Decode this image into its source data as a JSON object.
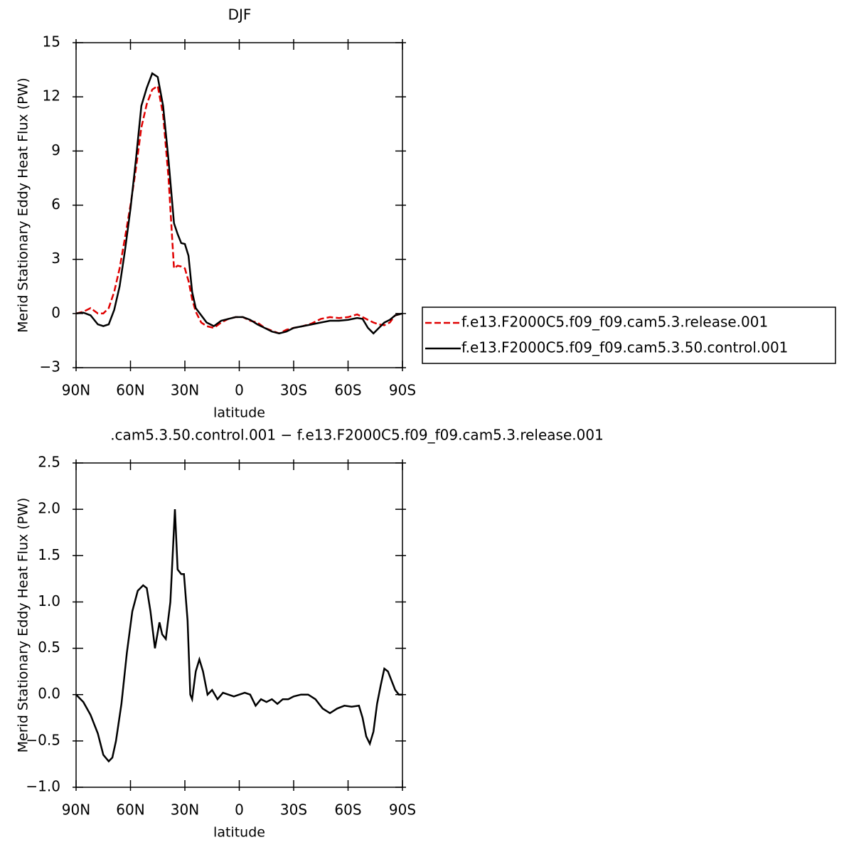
{
  "chart_data": [
    {
      "type": "line",
      "title": "DJF",
      "xlabel": "latitude",
      "ylabel": "Merid Stationary Eddy Heat Flux (PW)",
      "legend": "right",
      "x": [
        90,
        86,
        82,
        78,
        75,
        72,
        69,
        66,
        63,
        60,
        57,
        54,
        51,
        48,
        45,
        42,
        39,
        36,
        34,
        32,
        30,
        28,
        26,
        24,
        21,
        18,
        14,
        10,
        6,
        2,
        -2,
        -6,
        -10,
        -14,
        -18,
        -22,
        -26,
        -30,
        -35,
        -40,
        -45,
        -50,
        -55,
        -60,
        -65,
        -68,
        -71,
        -74,
        -77,
        -80,
        -83,
        -86,
        -90
      ],
      "series": [
        {
          "name": "f.e13.F2000C5.f09_f09.cam5.3.release.001",
          "color": "#e00000",
          "dash": true,
          "values": [
            0,
            0.1,
            0.3,
            0.0,
            0.0,
            0.3,
            1.2,
            2.5,
            4.2,
            6.0,
            8.0,
            10.3,
            11.6,
            12.4,
            12.6,
            11.0,
            7.5,
            2.5,
            2.65,
            2.6,
            2.5,
            1.8,
            0.8,
            0.1,
            -0.5,
            -0.7,
            -0.8,
            -0.5,
            -0.3,
            -0.2,
            -0.2,
            -0.4,
            -0.5,
            -0.8,
            -0.95,
            -1.1,
            -0.9,
            -0.8,
            -0.7,
            -0.55,
            -0.3,
            -0.2,
            -0.25,
            -0.2,
            -0.05,
            -0.2,
            -0.35,
            -0.5,
            -0.6,
            -0.65,
            -0.5,
            -0.1,
            0
          ]
        },
        {
          "name": "f.e13.F2000C5.f09_f09.cam5.3.50.control.001",
          "color": "#000000",
          "dash": false,
          "values": [
            0,
            0.05,
            -0.1,
            -0.6,
            -0.7,
            -0.6,
            0.2,
            1.5,
            3.5,
            5.8,
            8.5,
            11.5,
            12.5,
            13.3,
            13.1,
            11.5,
            8.5,
            5,
            4.4,
            3.9,
            3.85,
            3.2,
            1.2,
            0.3,
            -0.1,
            -0.5,
            -0.7,
            -0.4,
            -0.3,
            -0.2,
            -0.2,
            -0.35,
            -0.6,
            -0.8,
            -1.0,
            -1.1,
            -1.0,
            -0.8,
            -0.7,
            -0.6,
            -0.5,
            -0.4,
            -0.4,
            -0.35,
            -0.25,
            -0.3,
            -0.8,
            -1.1,
            -0.8,
            -0.5,
            -0.35,
            -0.1,
            0
          ]
        }
      ],
      "xlim": [
        90,
        -90
      ],
      "xticks": [
        {
          "value": 90,
          "label": "90N"
        },
        {
          "value": 60,
          "label": "60N"
        },
        {
          "value": 30,
          "label": "30N"
        },
        0,
        {
          "value": -30,
          "label": "30S"
        },
        {
          "value": -60,
          "label": "60S"
        },
        {
          "value": -90,
          "label": "90S"
        }
      ],
      "ylim": [
        -3,
        15
      ],
      "yticks": [
        {
          "value": -3,
          "label": "−3"
        },
        0,
        3,
        6,
        9,
        12,
        15
      ]
    },
    {
      "type": "line",
      "title": ".cam5.3.50.control.001 − f.e13.F2000C5.f09_f09.cam5.3.release.001",
      "xlabel": "latitude",
      "ylabel": "Merid Stationary Eddy Heat Flux (PW)",
      "x": [
        90,
        86,
        82,
        78,
        75,
        72,
        70,
        68,
        65,
        62,
        59,
        56,
        53,
        51,
        49,
        46.5,
        44,
        42.5,
        40.5,
        38,
        35.5,
        34,
        32,
        30.5,
        28.5,
        27,
        26,
        24,
        22,
        20,
        17.5,
        15,
        12,
        9,
        6,
        3,
        0,
        -3,
        -6,
        -9,
        -12,
        -15,
        -18,
        -21,
        -24,
        -27,
        -30,
        -34,
        -38,
        -42,
        -46,
        -50,
        -54,
        -58,
        -62,
        -66,
        -68,
        -70,
        -72,
        -74,
        -76,
        -78,
        -80,
        -82,
        -84,
        -86,
        -88,
        -90
      ],
      "series": [
        {
          "color": "#000000",
          "dash": false,
          "values": [
            0,
            -0.08,
            -0.22,
            -0.42,
            -0.65,
            -0.72,
            -0.68,
            -0.5,
            -0.1,
            0.45,
            0.9,
            1.12,
            1.18,
            1.15,
            0.9,
            0.5,
            0.78,
            0.65,
            0.6,
            1.0,
            2.0,
            1.35,
            1.3,
            1.3,
            0.8,
            0.0,
            -0.05,
            0.25,
            0.38,
            0.25,
            0.0,
            0.05,
            -0.05,
            0.02,
            0.0,
            -0.02,
            0.0,
            0.02,
            0.0,
            -0.12,
            -0.05,
            -0.08,
            -0.05,
            -0.1,
            -0.05,
            -0.05,
            -0.02,
            0.0,
            0.0,
            -0.05,
            -0.15,
            -0.2,
            -0.15,
            -0.12,
            -0.13,
            -0.12,
            -0.25,
            -0.45,
            -0.53,
            -0.4,
            -0.1,
            0.1,
            0.28,
            0.25,
            0.15,
            0.05,
            0.0,
            0
          ]
        }
      ],
      "xlim": [
        90,
        -90
      ],
      "xticks": [
        {
          "value": 90,
          "label": "90N"
        },
        {
          "value": 60,
          "label": "60N"
        },
        {
          "value": 30,
          "label": "30N"
        },
        0,
        {
          "value": -30,
          "label": "30S"
        },
        {
          "value": -60,
          "label": "60S"
        },
        {
          "value": -90,
          "label": "90S"
        }
      ],
      "ylim": [
        -1.0,
        2.5
      ],
      "yticks": [
        {
          "value": -1.0,
          "label": "−1.0"
        },
        {
          "value": -0.5,
          "label": "−0.5"
        },
        {
          "value": 0,
          "label": "0.0"
        },
        0.5,
        {
          "value": 1.0,
          "label": "1.0"
        },
        1.5,
        {
          "value": 2.0,
          "label": "2.0"
        },
        2.5
      ]
    }
  ]
}
